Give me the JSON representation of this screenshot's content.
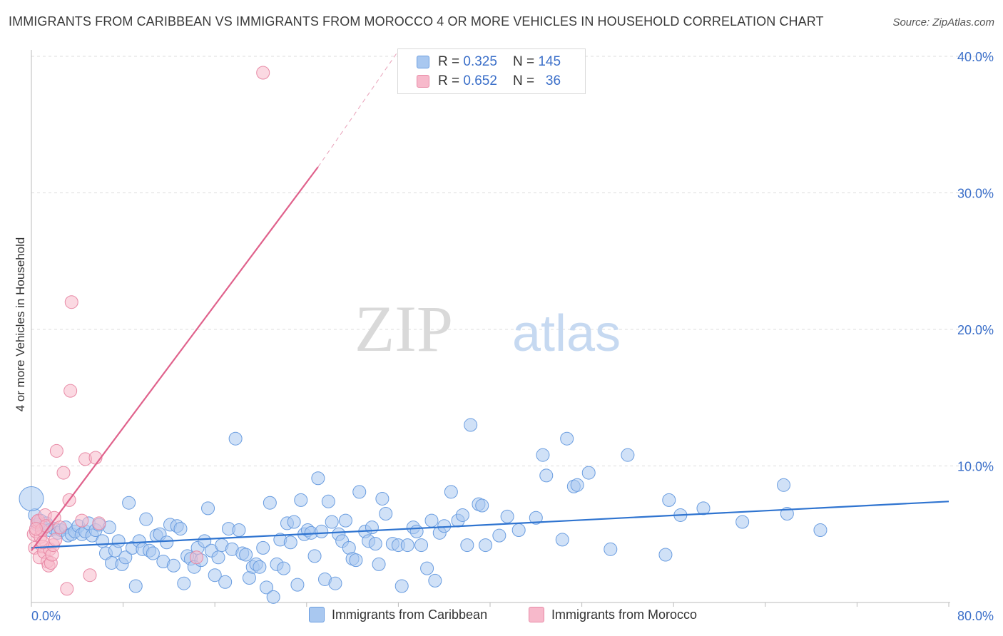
{
  "header": {
    "title": "IMMIGRANTS FROM CARIBBEAN VS IMMIGRANTS FROM MOROCCO 4 OR MORE VEHICLES IN HOUSEHOLD CORRELATION CHART",
    "source": "Source: ZipAtlas.com"
  },
  "watermark": {
    "zip": "ZIP",
    "atlas": "atlas"
  },
  "legend": {
    "r_label": "R =",
    "n_label": "N =",
    "series": [
      {
        "r": "0.325",
        "n": "145"
      },
      {
        "r": "0.652",
        "n": "36"
      }
    ]
  },
  "colors": {
    "blue_fill": "#a9c8f0",
    "blue_stroke": "#6a9de0",
    "blue_line": "#2f74d0",
    "pink_fill": "#f7b9cb",
    "pink_stroke": "#e88aa6",
    "pink_line": "#e0628c",
    "grid": "#dcdcdc",
    "tick_label": "#3b6fc9"
  },
  "chart_data": {
    "type": "scatter",
    "title": "IMMIGRANTS FROM CARIBBEAN VS IMMIGRANTS FROM MOROCCO 4 OR MORE VEHICLES IN HOUSEHOLD CORRELATION CHART",
    "xlabel": "",
    "ylabel": "4 or more Vehicles in Household",
    "xlim": [
      0,
      80
    ],
    "ylim": [
      0,
      42
    ],
    "x_tick_labels": [
      "0.0%",
      "80.0%"
    ],
    "y_ticks": [
      10,
      20,
      30,
      40
    ],
    "y_tick_labels": [
      "10.0%",
      "20.0%",
      "30.0%",
      "40.0%"
    ],
    "legend_position": "bottom",
    "series": [
      {
        "name": "Immigrants from Caribbean",
        "color": "#a9c8f0",
        "R": 0.325,
        "N": 145,
        "trend": {
          "x": [
            0,
            80
          ],
          "y": [
            4.0,
            7.4
          ]
        },
        "points": [
          [
            0.3,
            6.4
          ],
          [
            0.5,
            5.7
          ],
          [
            0.8,
            6.0
          ],
          [
            1.0,
            5.5
          ],
          [
            1.3,
            5.8
          ],
          [
            1.6,
            5.3
          ],
          [
            2.0,
            5.4
          ],
          [
            2.3,
            5.1
          ],
          [
            2.6,
            5.3
          ],
          [
            3.0,
            5.5
          ],
          [
            3.2,
            4.9
          ],
          [
            3.5,
            5.0
          ],
          [
            3.8,
            5.2
          ],
          [
            4.1,
            5.6
          ],
          [
            4.4,
            5.0
          ],
          [
            4.7,
            5.2
          ],
          [
            5.0,
            5.8
          ],
          [
            5.3,
            4.9
          ],
          [
            5.6,
            5.3
          ],
          [
            5.9,
            5.7
          ],
          [
            6.2,
            4.5
          ],
          [
            6.5,
            3.6
          ],
          [
            6.8,
            5.5
          ],
          [
            7.0,
            2.9
          ],
          [
            7.3,
            3.8
          ],
          [
            7.6,
            4.5
          ],
          [
            7.9,
            2.8
          ],
          [
            8.2,
            3.3
          ],
          [
            8.5,
            7.3
          ],
          [
            8.8,
            4.0
          ],
          [
            9.1,
            1.2
          ],
          [
            9.4,
            4.5
          ],
          [
            9.7,
            3.9
          ],
          [
            10.0,
            6.1
          ],
          [
            10.3,
            3.8
          ],
          [
            10.6,
            3.6
          ],
          [
            10.9,
            4.9
          ],
          [
            11.2,
            5.0
          ],
          [
            11.5,
            3.0
          ],
          [
            11.8,
            4.4
          ],
          [
            12.1,
            5.7
          ],
          [
            12.4,
            2.7
          ],
          [
            12.7,
            5.6
          ],
          [
            13.0,
            5.4
          ],
          [
            13.3,
            1.4
          ],
          [
            13.6,
            3.4
          ],
          [
            13.9,
            3.2
          ],
          [
            14.2,
            2.6
          ],
          [
            14.5,
            4.0
          ],
          [
            14.8,
            3.1
          ],
          [
            15.1,
            4.5
          ],
          [
            15.4,
            6.9
          ],
          [
            15.7,
            3.8
          ],
          [
            16.0,
            2.0
          ],
          [
            16.3,
            3.3
          ],
          [
            16.6,
            4.2
          ],
          [
            16.9,
            1.5
          ],
          [
            17.2,
            5.4
          ],
          [
            17.5,
            3.9
          ],
          [
            17.8,
            12.0
          ],
          [
            18.1,
            5.3
          ],
          [
            18.4,
            3.6
          ],
          [
            18.7,
            3.5
          ],
          [
            19.0,
            1.8
          ],
          [
            19.3,
            2.6
          ],
          [
            19.6,
            2.8
          ],
          [
            19.9,
            2.6
          ],
          [
            20.2,
            4.0
          ],
          [
            20.5,
            1.1
          ],
          [
            20.8,
            7.3
          ],
          [
            21.1,
            0.4
          ],
          [
            21.4,
            2.8
          ],
          [
            21.7,
            4.6
          ],
          [
            22.0,
            2.5
          ],
          [
            22.3,
            5.8
          ],
          [
            22.6,
            4.4
          ],
          [
            22.9,
            5.9
          ],
          [
            23.2,
            1.3
          ],
          [
            23.5,
            7.5
          ],
          [
            23.8,
            5.0
          ],
          [
            24.1,
            5.3
          ],
          [
            24.4,
            5.1
          ],
          [
            24.7,
            3.4
          ],
          [
            25.0,
            9.1
          ],
          [
            25.3,
            5.2
          ],
          [
            25.6,
            1.7
          ],
          [
            25.9,
            7.4
          ],
          [
            26.2,
            5.9
          ],
          [
            26.5,
            1.4
          ],
          [
            26.8,
            5.0
          ],
          [
            27.1,
            4.5
          ],
          [
            27.4,
            6.0
          ],
          [
            27.7,
            4.0
          ],
          [
            28.0,
            3.2
          ],
          [
            28.3,
            3.1
          ],
          [
            28.6,
            8.1
          ],
          [
            29.1,
            5.2
          ],
          [
            29.4,
            4.5
          ],
          [
            29.7,
            5.5
          ],
          [
            30.0,
            4.3
          ],
          [
            30.3,
            2.8
          ],
          [
            30.6,
            7.6
          ],
          [
            30.9,
            6.5
          ],
          [
            31.5,
            4.3
          ],
          [
            32.0,
            4.2
          ],
          [
            32.3,
            1.2
          ],
          [
            32.8,
            4.2
          ],
          [
            33.3,
            5.5
          ],
          [
            33.6,
            5.2
          ],
          [
            34.0,
            4.2
          ],
          [
            34.5,
            2.5
          ],
          [
            34.9,
            6.0
          ],
          [
            35.2,
            1.6
          ],
          [
            35.6,
            5.1
          ],
          [
            36.0,
            5.6
          ],
          [
            36.6,
            8.1
          ],
          [
            37.2,
            6.0
          ],
          [
            37.6,
            6.4
          ],
          [
            38.0,
            4.2
          ],
          [
            38.3,
            13.0
          ],
          [
            39.0,
            7.2
          ],
          [
            39.3,
            7.1
          ],
          [
            39.6,
            4.2
          ],
          [
            40.8,
            4.9
          ],
          [
            41.5,
            6.3
          ],
          [
            42.5,
            5.3
          ],
          [
            44.0,
            6.2
          ],
          [
            44.6,
            10.8
          ],
          [
            44.9,
            9.3
          ],
          [
            46.3,
            4.6
          ],
          [
            46.7,
            12.0
          ],
          [
            47.3,
            8.5
          ],
          [
            47.6,
            8.6
          ],
          [
            48.6,
            9.5
          ],
          [
            50.5,
            3.9
          ],
          [
            52.0,
            10.8
          ],
          [
            55.3,
            3.5
          ],
          [
            55.6,
            7.5
          ],
          [
            56.6,
            6.4
          ],
          [
            58.6,
            6.9
          ],
          [
            62.0,
            5.9
          ],
          [
            65.6,
            8.6
          ],
          [
            65.9,
            6.5
          ],
          [
            68.8,
            5.3
          ],
          [
            0.0,
            7.6
          ]
        ]
      },
      {
        "name": "Immigrants from Morocco",
        "color": "#f7b9cb",
        "R": 0.652,
        "N": 36,
        "trend": {
          "x": [
            0,
            25
          ],
          "y": [
            3.8,
            31.9
          ],
          "dashed_extension": {
            "x": [
              25,
              32
            ],
            "y": [
              31.9,
              40.4
            ]
          }
        },
        "points": [
          [
            0.2,
            5.0
          ],
          [
            0.3,
            4.0
          ],
          [
            0.4,
            5.2
          ],
          [
            0.5,
            5.9
          ],
          [
            0.6,
            6.0
          ],
          [
            0.7,
            3.3
          ],
          [
            0.8,
            4.8
          ],
          [
            0.9,
            5.3
          ],
          [
            1.0,
            4.1
          ],
          [
            1.1,
            3.7
          ],
          [
            1.2,
            6.4
          ],
          [
            1.3,
            5.6
          ],
          [
            1.4,
            3.0
          ],
          [
            1.5,
            2.7
          ],
          [
            1.6,
            3.9
          ],
          [
            1.7,
            2.9
          ],
          [
            1.8,
            3.5
          ],
          [
            1.9,
            4.2
          ],
          [
            2.0,
            6.2
          ],
          [
            2.2,
            11.1
          ],
          [
            2.5,
            5.5
          ],
          [
            2.8,
            9.5
          ],
          [
            3.1,
            1.0
          ],
          [
            3.3,
            7.5
          ],
          [
            3.4,
            15.5
          ],
          [
            3.5,
            22.0
          ],
          [
            4.4,
            6.0
          ],
          [
            4.7,
            10.5
          ],
          [
            5.1,
            2.0
          ],
          [
            5.6,
            10.6
          ],
          [
            5.9,
            5.8
          ],
          [
            14.4,
            3.3
          ],
          [
            20.2,
            38.8
          ],
          [
            1.0,
            4.4
          ],
          [
            0.4,
            5.4
          ],
          [
            2.1,
            4.6
          ]
        ]
      }
    ]
  },
  "bottom_legend": {
    "items": [
      "Immigrants from Caribbean",
      "Immigrants from Morocco"
    ]
  }
}
